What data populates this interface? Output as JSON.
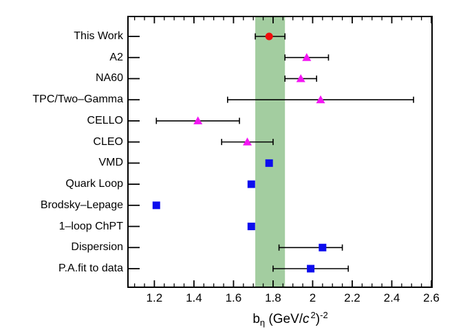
{
  "chart_data": {
    "type": "scatter",
    "orientation": "horizontal-categories-with-error-bars",
    "title": "",
    "xlabel_plain": "b_eta (GeV/c^2)^-2",
    "x_axis_title": {
      "base": "b",
      "sub": "η",
      "mid": " (GeV/",
      "c": "c",
      "c_sup": "2",
      "close": ")",
      "end_sup": "-2"
    },
    "xlim": [
      1.07,
      2.6
    ],
    "x_major_ticks": [
      {
        "v": 1.2,
        "label": "1.2"
      },
      {
        "v": 1.4,
        "label": "1.4"
      },
      {
        "v": 1.6,
        "label": "1.6"
      },
      {
        "v": 1.8,
        "label": "1.8"
      },
      {
        "v": 2.0,
        "label": "2"
      },
      {
        "v": 2.2,
        "label": "2.2"
      },
      {
        "v": 2.4,
        "label": "2.4"
      },
      {
        "v": 2.6,
        "label": "2.6"
      }
    ],
    "x_minor_start": 1.1,
    "x_minor_step": 0.05,
    "grid": false,
    "legend": false,
    "band": {
      "from": 1.71,
      "to": 1.86,
      "color": "#a3cda0",
      "meaning": "this-work uncertainty band"
    },
    "colors": {
      "this_work_marker": "#f20d0d",
      "experiment_marker": "#f316f3",
      "theory_marker": "#0d0dee",
      "axis": "#000000"
    },
    "points": [
      {
        "label": "This Work",
        "value": 1.78,
        "err_minus": 0.07,
        "err_plus": 0.08,
        "marker": "circle",
        "color": "#f20d0d"
      },
      {
        "label": "A2",
        "value": 1.97,
        "err_minus": 0.11,
        "err_plus": 0.11,
        "marker": "triangle",
        "color": "#f316f3"
      },
      {
        "label": "NA60",
        "value": 1.94,
        "err_minus": 0.08,
        "err_plus": 0.08,
        "marker": "triangle",
        "color": "#f316f3"
      },
      {
        "label": "TPC/Two–Gamma",
        "value": 2.04,
        "err_minus": 0.47,
        "err_plus": 0.47,
        "marker": "triangle",
        "color": "#f316f3"
      },
      {
        "label": "CELLO",
        "value": 1.42,
        "err_minus": 0.21,
        "err_plus": 0.21,
        "marker": "triangle",
        "color": "#f316f3"
      },
      {
        "label": "CLEO",
        "value": 1.67,
        "err_minus": 0.13,
        "err_plus": 0.13,
        "marker": "triangle",
        "color": "#f316f3"
      },
      {
        "label": "VMD",
        "value": 1.78,
        "err_minus": 0,
        "err_plus": 0,
        "marker": "square",
        "color": "#0d0dee"
      },
      {
        "label": "Quark Loop",
        "value": 1.69,
        "err_minus": 0,
        "err_plus": 0,
        "marker": "square",
        "color": "#0d0dee"
      },
      {
        "label": "Brodsky–Lepage",
        "value": 1.21,
        "err_minus": 0,
        "err_plus": 0,
        "marker": "square",
        "color": "#0d0dee"
      },
      {
        "label": "1–loop ChPT",
        "value": 1.69,
        "err_minus": 0,
        "err_plus": 0,
        "marker": "square",
        "color": "#0d0dee"
      },
      {
        "label": "Dispersion",
        "value": 2.05,
        "err_minus": 0.22,
        "err_plus": 0.1,
        "marker": "square",
        "color": "#0d0dee"
      },
      {
        "label": "P.A.fit to data",
        "value": 1.99,
        "err_minus": 0.19,
        "err_plus": 0.19,
        "marker": "square",
        "color": "#0d0dee"
      }
    ]
  }
}
